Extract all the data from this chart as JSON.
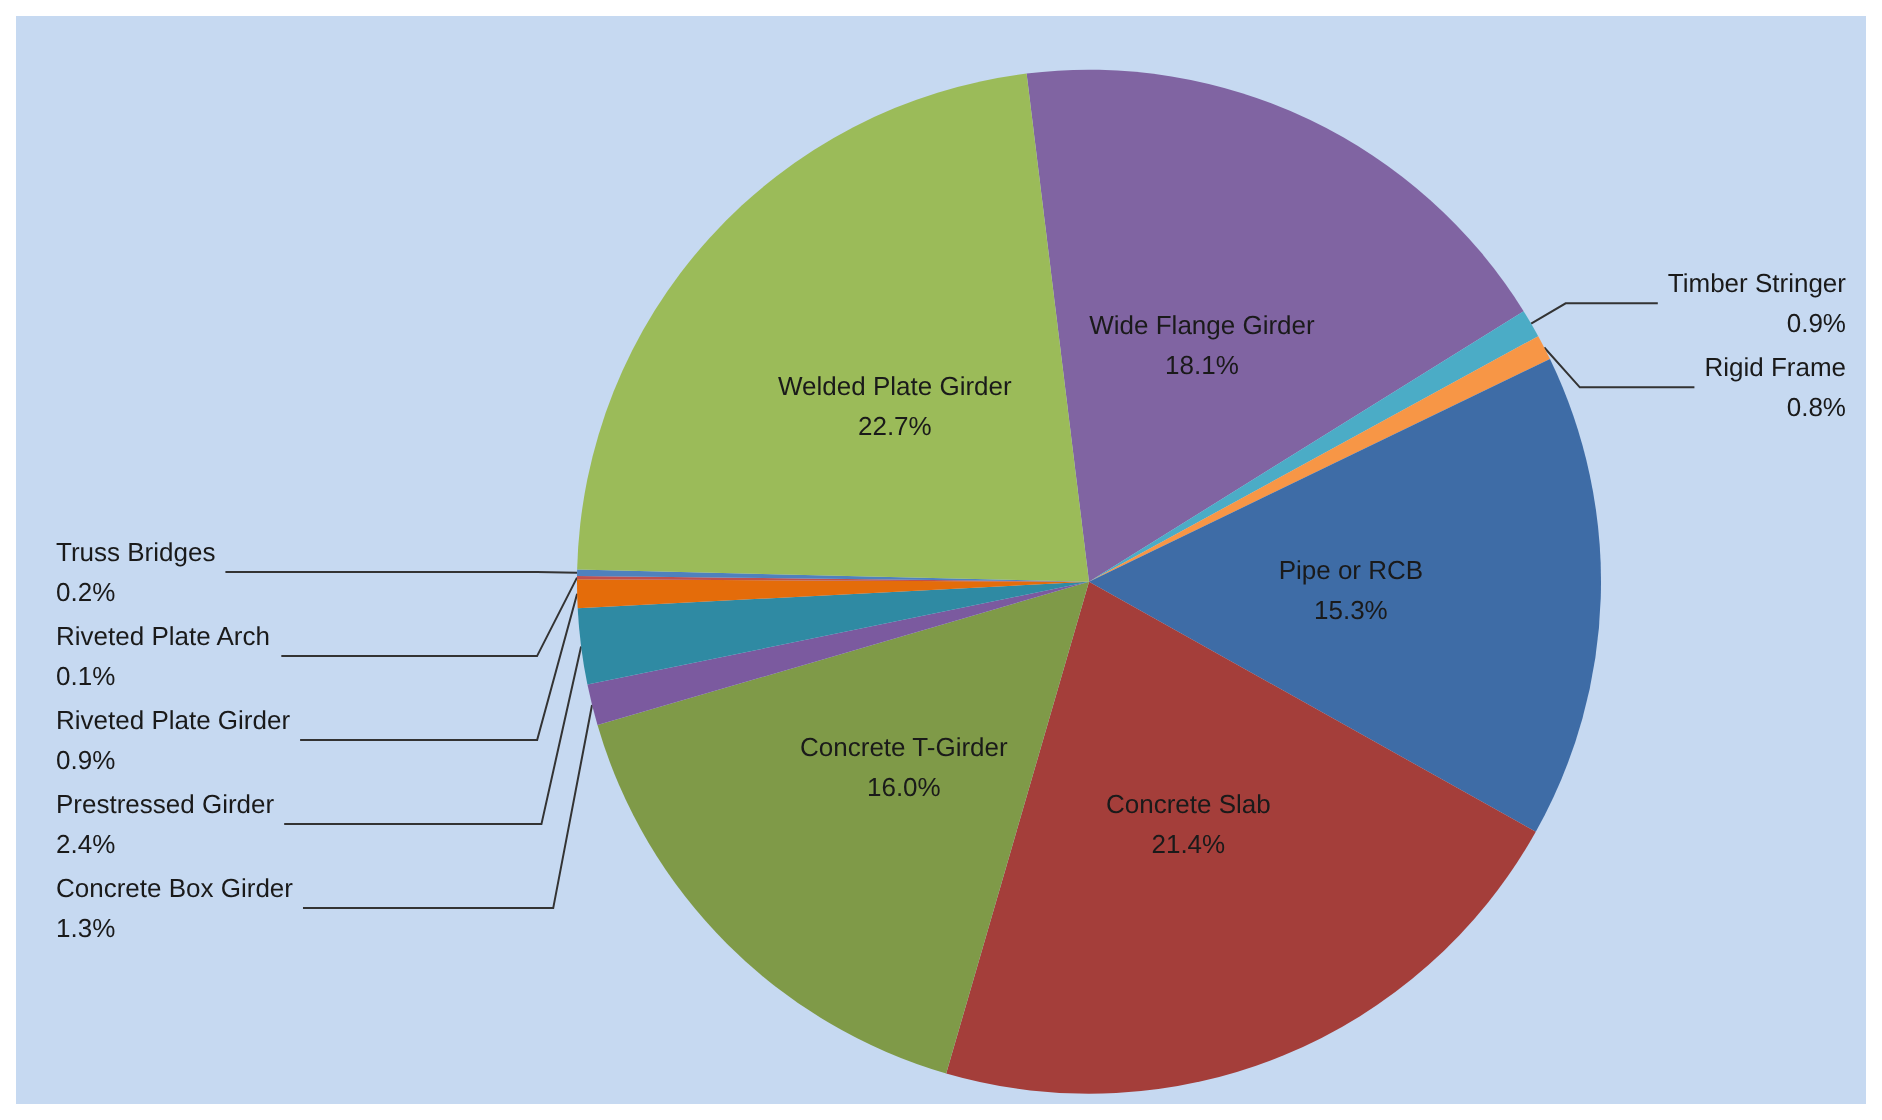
{
  "chart_data": {
    "type": "pie",
    "categories": [
      "Wide Flange Girder",
      "Timber Stringer",
      "Rigid Frame",
      "Pipe or RCB",
      "Concrete Slab",
      "Concrete T-Girder",
      "Concrete Box Girder",
      "Prestressed Girder",
      "Riveted Plate Girder",
      "Riveted Plate Arch",
      "Truss Bridges",
      "Welded Plate Girder"
    ],
    "values": [
      18.1,
      0.9,
      0.8,
      15.3,
      21.4,
      16.0,
      1.3,
      2.4,
      0.9,
      0.1,
      0.2,
      22.7
    ],
    "value_labels": [
      "18.1%",
      "0.9%",
      "0.8%",
      "15.3%",
      "21.4%",
      "16.0%",
      "1.3%",
      "2.4%",
      "0.9%",
      "0.1%",
      "0.2%",
      "22.7%"
    ],
    "colors": [
      "#8064a2",
      "#4bacc6",
      "#f79646",
      "#3e6ca6",
      "#a43e3a",
      "#7f9a48",
      "#7b5a9f",
      "#2f8aa3",
      "#e46c0a",
      "#c0504d",
      "#4f81bd",
      "#9bbb59"
    ],
    "legend": false
  }
}
